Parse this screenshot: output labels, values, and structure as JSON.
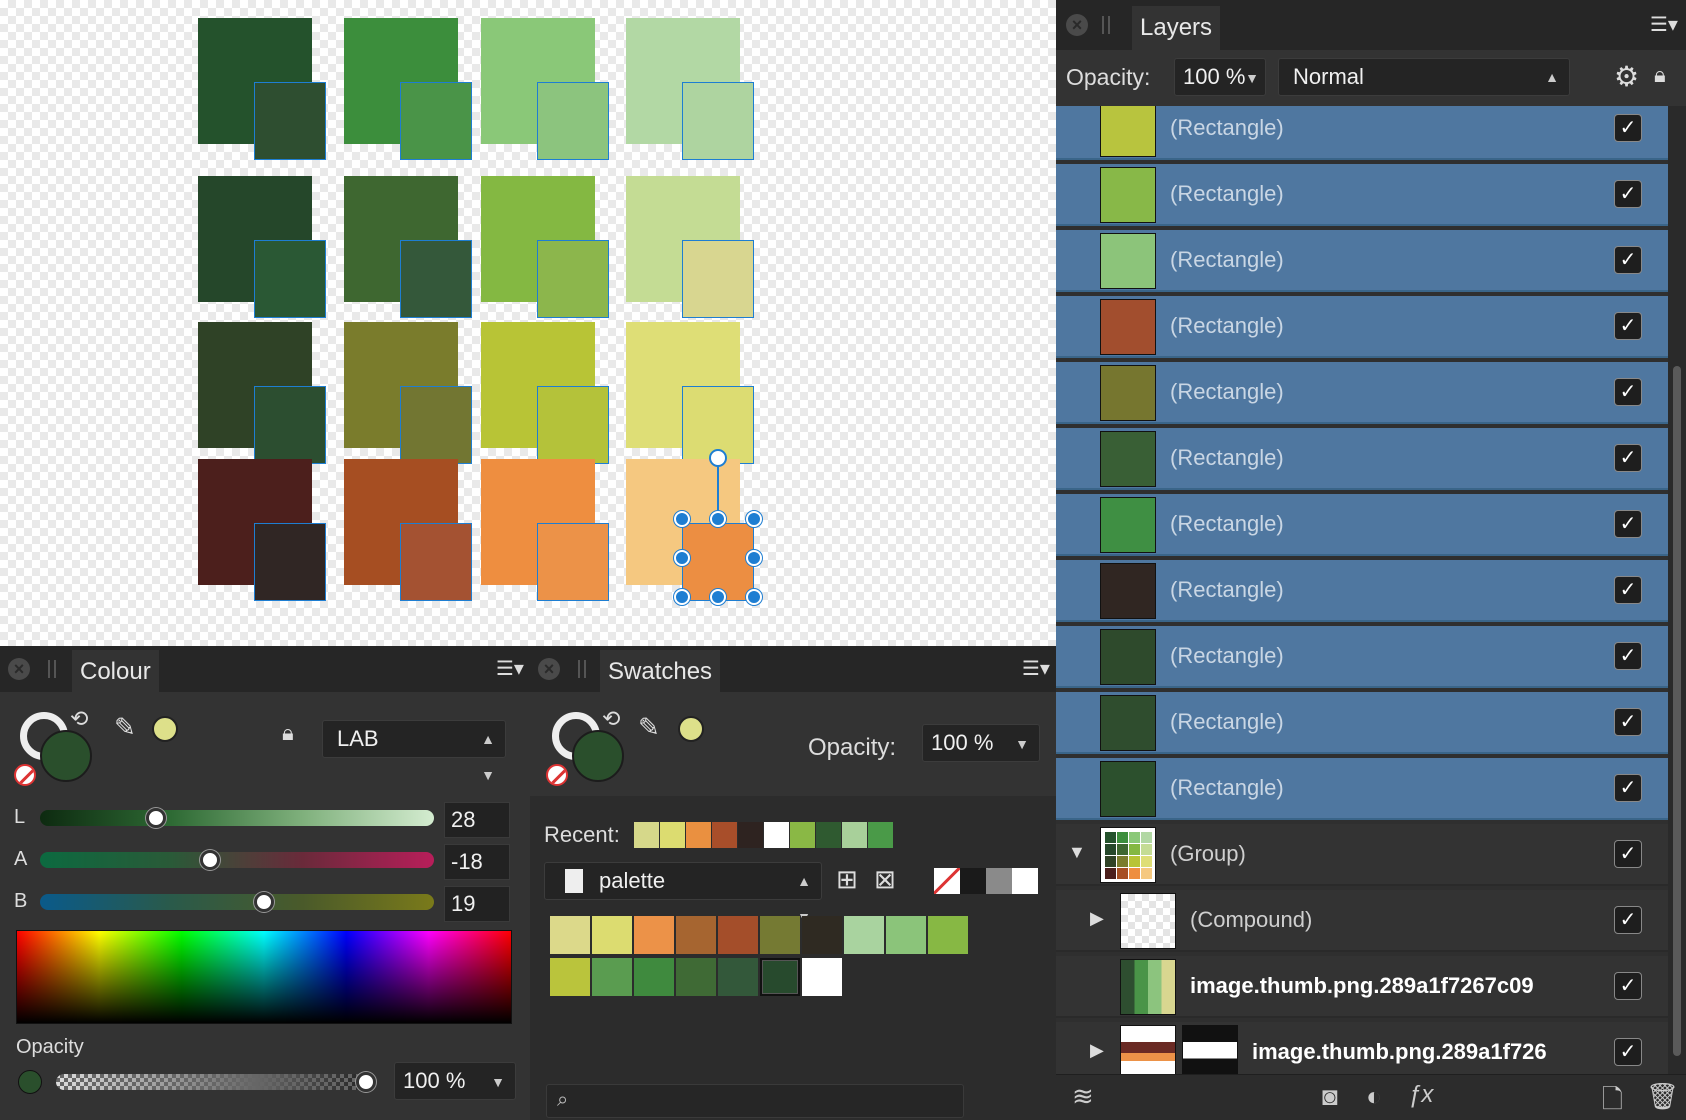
{
  "colour_panel": {
    "tab": "Colour",
    "model": "LAB",
    "l_label": "L",
    "l_value": "28",
    "a_label": "A",
    "a_value": "-18",
    "b_label": "B",
    "b_value": "19",
    "opacity_label": "Opacity",
    "opacity_value": "100 %",
    "current_fill": "#2a4f2c"
  },
  "swatches_panel": {
    "tab": "Swatches",
    "opacity_label": "Opacity:",
    "opacity_value": "100 %",
    "recent_label": "Recent:",
    "recent": [
      "#d6d88a",
      "#dcdc70",
      "#ea9040",
      "#a84e2a",
      "#2e2320",
      "#ffffff",
      "#8ab845",
      "#2f5a30",
      "#a8d09a",
      "#4a9a48"
    ],
    "palette_name": "palette",
    "palette": [
      "#dcd98a",
      "#dcdc70",
      "#ec9248",
      "#a66530",
      "#a44e2a",
      "#757a33",
      "#2f2a22",
      "#a9d39f",
      "#8bc47a",
      "#87b844",
      "#bac43c",
      "#5a9c50",
      "#3f8a3e",
      "#3f6a35",
      "#33583a",
      "#274a2d",
      "#ffffff"
    ],
    "search_placeholder": ""
  },
  "layers_panel": {
    "tab": "Layers",
    "opacity_label": "Opacity:",
    "opacity_value": "100 %",
    "blend_mode": "Normal",
    "rows": [
      {
        "name": "(Rectangle)",
        "color": "#b8c43e"
      },
      {
        "name": "(Rectangle)",
        "color": "#88b848"
      },
      {
        "name": "(Rectangle)",
        "color": "#8cc47a"
      },
      {
        "name": "(Rectangle)",
        "color": "#a24e2e"
      },
      {
        "name": "(Rectangle)",
        "color": "#76762f"
      },
      {
        "name": "(Rectangle)",
        "color": "#395f35"
      },
      {
        "name": "(Rectangle)",
        "color": "#3f8f43"
      },
      {
        "name": "(Rectangle)",
        "color": "#302622"
      },
      {
        "name": "(Rectangle)",
        "color": "#2e4a2c"
      },
      {
        "name": "(Rectangle)",
        "color": "#2f4d2e"
      },
      {
        "name": "(Rectangle)",
        "color": "#2c502d"
      }
    ],
    "group_name": "(Group)",
    "compound_name": "(Compound)",
    "image1_name": "image.thumb.png.289a1f7267c09",
    "image2_name": "image.thumb.png.289a1f726"
  },
  "canvas": {
    "rows": [
      {
        "back": [
          "#24522c",
          "#3c8e3c",
          "#8ac878",
          "#b2d8a4"
        ],
        "front": [
          "#2e4e30",
          "#4a9448",
          "#8cc47e",
          "#aed4a0"
        ]
      },
      {
        "back": [
          "#25472a",
          "#3e6730",
          "#84b842",
          "#c4dc94"
        ],
        "front": [
          "#2a5834",
          "#34583a",
          "#8cb64c",
          "#d8d690"
        ]
      },
      {
        "back": [
          "#2f4226",
          "#7a7c2c",
          "#b8c436",
          "#dede76"
        ],
        "front": [
          "#2c4e30",
          "#727632",
          "#b4c23a",
          "#dcdc72"
        ]
      },
      {
        "back": [
          "#4c1f1c",
          "#a64e22",
          "#ee8e40",
          "#f5c880"
        ],
        "front": [
          "#302624",
          "#a45232",
          "#ec9248",
          "#ec8e42"
        ]
      }
    ]
  }
}
